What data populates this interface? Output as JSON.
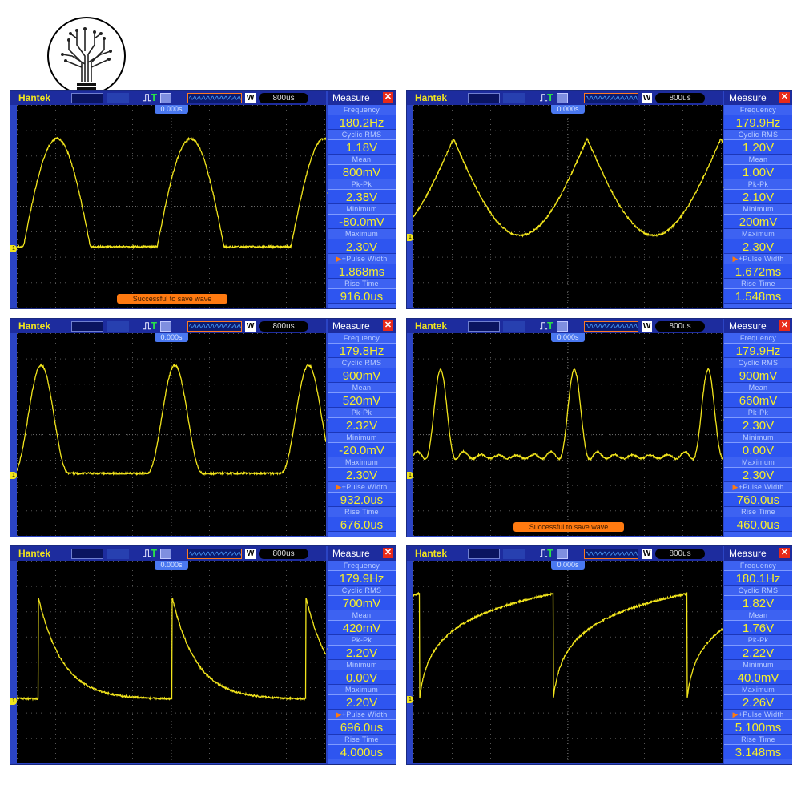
{
  "logo": {
    "description_icon": "circuit-tree-lightbulb-icon"
  },
  "header": {
    "brand": "Hantek",
    "timebase": "800us",
    "memory_label": "W",
    "trigger_label": "T",
    "time_position": "0.000s"
  },
  "measure": {
    "title": "Measure",
    "labels": [
      "Frequency",
      "Cyclic RMS",
      "Mean",
      "Pk-Pk",
      "Minimum",
      "Maximum",
      "+Pulse Width",
      "Rise Time"
    ]
  },
  "colors": {
    "trace": "#f2e51c",
    "frame": "#2b44c4",
    "measure_bg": "#3d62f2",
    "value_text": "#f6ee2c",
    "toast": "#ff7a10"
  },
  "panels": [
    {
      "waveform": "half-wave-rectified-sine",
      "values": [
        "180.2Hz",
        "1.18V",
        "800mV",
        "2.38V",
        "-80.0mV",
        "2.30V",
        "1.868ms",
        "916.0us"
      ],
      "toast": "Successful to save wave"
    },
    {
      "waveform": "cusped-sine",
      "values": [
        "179.9Hz",
        "1.20V",
        "1.00V",
        "2.10V",
        "200mV",
        "2.30V",
        "1.672ms",
        "1.548ms"
      ]
    },
    {
      "waveform": "raised-pulse",
      "values": [
        "179.8Hz",
        "900mV",
        "520mV",
        "2.32V",
        "-20.0mV",
        "2.30V",
        "932.0us",
        "676.0us"
      ]
    },
    {
      "waveform": "pulse-with-ringing",
      "values": [
        "179.9Hz",
        "900mV",
        "660mV",
        "2.30V",
        "0.00V",
        "2.30V",
        "760.0us",
        "460.0us"
      ],
      "toast": "Successful to save wave"
    },
    {
      "waveform": "exponential-decay-sawtooth",
      "values": [
        "179.9Hz",
        "700mV",
        "420mV",
        "2.20V",
        "0.00V",
        "2.20V",
        "696.0us",
        "4.000us"
      ]
    },
    {
      "waveform": "logarithmic-charge-sawtooth",
      "values": [
        "180.1Hz",
        "1.82V",
        "1.76V",
        "2.22V",
        "40.0mV",
        "2.26V",
        "5.100ms",
        "3.148ms"
      ]
    }
  ]
}
